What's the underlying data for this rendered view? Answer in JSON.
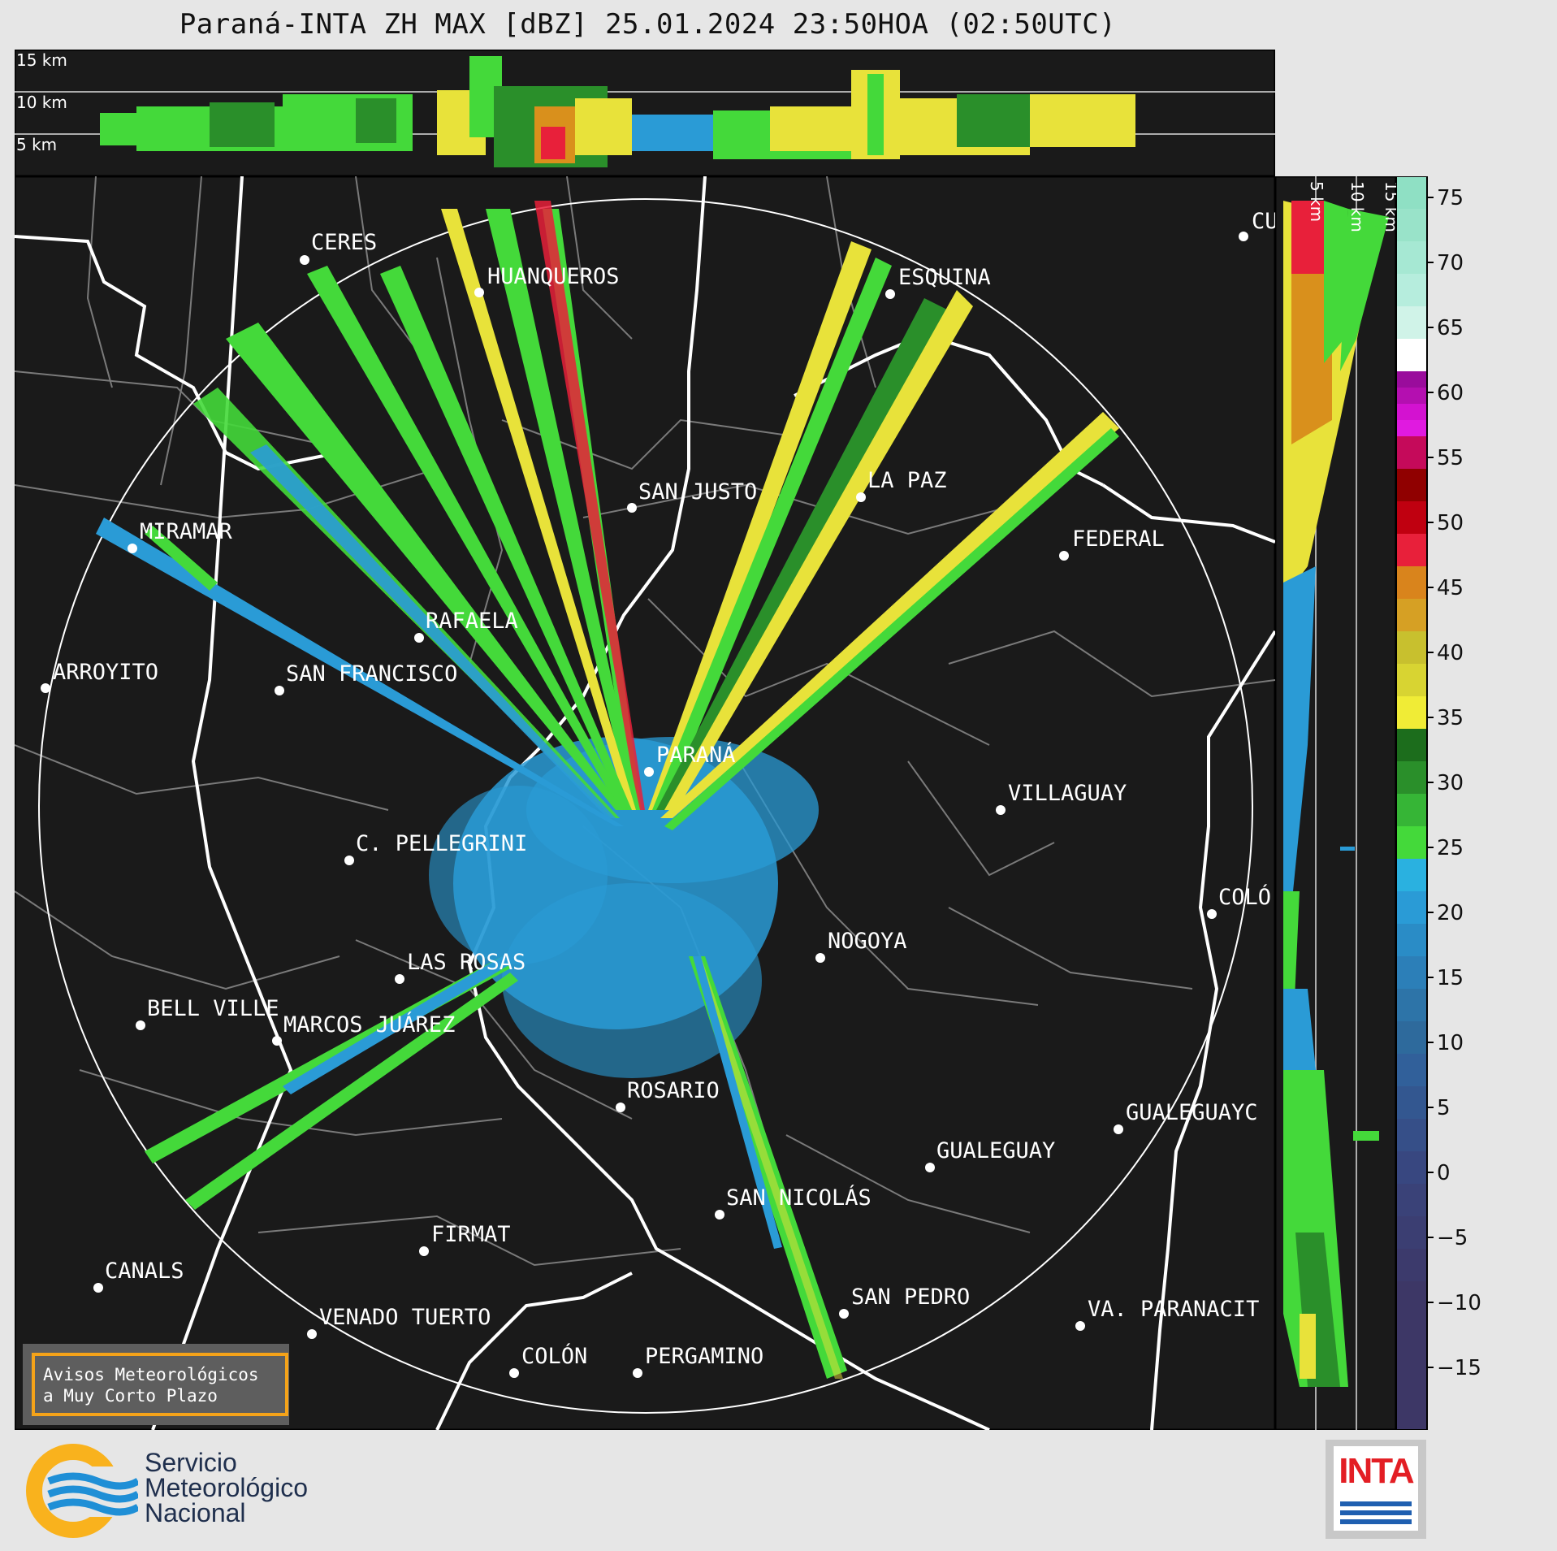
{
  "title": "Paraná-INTA ZH MAX [dBZ] 25.01.2024 23:50HOA (02:50UTC)",
  "top_panel": {
    "altitude_labels": [
      "15 km",
      "10 km",
      "5 km"
    ]
  },
  "side_panel": {
    "altitude_labels": [
      "5 km",
      "10 km",
      "15 km"
    ]
  },
  "colorbar": {
    "unit": "dBZ",
    "ticks": [
      "75",
      "70",
      "65",
      "60",
      "55",
      "50",
      "45",
      "40",
      "35",
      "30",
      "25",
      "20",
      "15",
      "10",
      "5",
      "0",
      "−5",
      "−10",
      "−15"
    ]
  },
  "cities": [
    {
      "name": "CERES"
    },
    {
      "name": "HUANQUEROS"
    },
    {
      "name": "ESQUINA"
    },
    {
      "name": "CU"
    },
    {
      "name": "SAN JUSTO"
    },
    {
      "name": "LA PAZ"
    },
    {
      "name": "MIRAMAR"
    },
    {
      "name": "FEDERAL"
    },
    {
      "name": "RAFAELA"
    },
    {
      "name": "ARROYITO"
    },
    {
      "name": "SAN FRANCISCO"
    },
    {
      "name": "PARANÁ"
    },
    {
      "name": "VILLAGUAY"
    },
    {
      "name": "C. PELLEGRINI"
    },
    {
      "name": "COLÓ"
    },
    {
      "name": "NOGOYA"
    },
    {
      "name": "LAS ROSAS"
    },
    {
      "name": "BELL VILLE"
    },
    {
      "name": "MARCOS JUÁREZ"
    },
    {
      "name": "ROSARIO"
    },
    {
      "name": "GUALEGUAYC"
    },
    {
      "name": "GUALEGUAY"
    },
    {
      "name": "SAN NICOLÁS"
    },
    {
      "name": "FIRMAT"
    },
    {
      "name": "CANALS"
    },
    {
      "name": "SAN PEDRO"
    },
    {
      "name": "VENADO TUERTO"
    },
    {
      "name": "VA. PARANACIT"
    },
    {
      "name": "COLÓN"
    },
    {
      "name": "PERGAMINO"
    }
  ],
  "notice": {
    "line1": "Avisos Meteorológicos",
    "line2": "a Muy Corto Plazo"
  },
  "smn": {
    "line1": "Servicio",
    "line2": "Meteorológico",
    "line3": "Nacional"
  },
  "inta": {
    "text": "INTA"
  },
  "colors": {
    "background": "#1a1a1a",
    "range_ring": "#ffffff",
    "boundary_major": "#ffffff",
    "boundary_minor": "#7a7a7a",
    "echo_low": "#2a9bd6",
    "echo_green": "#44d93a",
    "echo_dark_green": "#2a8f2a",
    "echo_yellow": "#e8e23a",
    "echo_orange": "#d9901c",
    "echo_red": "#e8203a"
  }
}
